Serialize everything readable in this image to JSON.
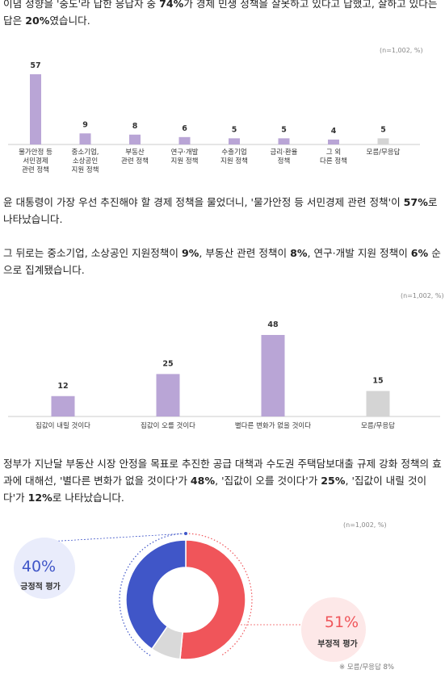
{
  "paragraphs": [
    {
      "parts": [
        {
          "t": "이념 성향을 '중도'라 답한 응답자 중 "
        },
        {
          "t": "74%",
          "b": true
        },
        {
          "t": "가 경제 민생 정책을 잘못하고 있다고 답했고, 잘하고 있다는 답은 "
        },
        {
          "t": "20%",
          "b": true
        },
        {
          "t": "였습니다."
        }
      ]
    },
    {
      "parts": [
        {
          "t": "윤 대통령이 가장 우선 추진해야 할 경제 정책을 물었더니, '물가안정 등 서민경제 관련 정책'이 "
        },
        {
          "t": "57%",
          "b": true
        },
        {
          "t": "로 나타났습니다."
        }
      ]
    },
    {
      "parts": [
        {
          "t": "그 뒤로는 중소기업, 소상공인 지원정책이 "
        },
        {
          "t": "9%",
          "b": true
        },
        {
          "t": ", 부동산 관련 정책이 "
        },
        {
          "t": "8%",
          "b": true
        },
        {
          "t": ", 연구·개발 지원 정책이 "
        },
        {
          "t": "6%",
          "b": true
        },
        {
          "t": " 순으로 집계됐습니다."
        }
      ]
    },
    {
      "parts": [
        {
          "t": "정부가 지난달 부동산 시장 안정을 목표로 추진한 공급 대책과 수도권 주택담보대출 규제 강화 정책의 효과에 대해선, '별다른 변화가 없을 것이다'가 "
        },
        {
          "t": "48%",
          "b": true
        },
        {
          "t": ", '집값이 오를 것이다'가 "
        },
        {
          "t": "25%",
          "b": true
        },
        {
          "t": ", '집값이 내릴 것이다'가 "
        },
        {
          "t": "12%",
          "b": true
        },
        {
          "t": "로 나타났습니다."
        }
      ]
    }
  ],
  "chart_data": [
    {
      "type": "bar",
      "note": "(n=1,002, %)",
      "categories": [
        [
          "물가안정 등",
          "서민경제",
          "관련 정책"
        ],
        [
          "중소기업,",
          "소상공인",
          "지원 정책"
        ],
        [
          "부동산",
          "관련 정책"
        ],
        [
          "연구·개발",
          "지원 정책"
        ],
        [
          "수출기업",
          "지원 정책"
        ],
        [
          "금리·환율",
          "정책"
        ],
        [
          "그 외",
          "다른 정책"
        ],
        [
          "모름/무응답"
        ]
      ],
      "values": [
        57,
        9,
        8,
        6,
        5,
        5,
        4,
        5
      ],
      "highlight_color": "#b9a5d6",
      "other_color": "#d4d4d4",
      "grey_index": 7,
      "ylim": [
        0,
        57
      ]
    },
    {
      "type": "bar",
      "note": "(n=1,002, %)",
      "categories": [
        [
          "집값이 내릴 것이다"
        ],
        [
          "집값이 오를 것이다"
        ],
        [
          "별다른 변화가 없을 것이다"
        ],
        [
          "모름/무응답"
        ]
      ],
      "values": [
        12,
        25,
        48,
        15
      ],
      "highlight_color": "#b9a5d6",
      "other_color": "#d4d4d4",
      "grey_index": 3,
      "ylim": [
        0,
        48
      ]
    },
    {
      "type": "pie",
      "note": "(n=1,002, %)",
      "slices": [
        {
          "label": "부정적 평가",
          "pct_label": "51%",
          "value": 51,
          "color": "#f0555a"
        },
        {
          "label": "모름/무응답",
          "value": 8,
          "color": "#d9d9d9"
        },
        {
          "label": "긍정적 평가",
          "pct_label": "40%",
          "value": 40,
          "color": "#4056c8"
        }
      ],
      "footnote": "※ 모름/무응답 8%"
    }
  ]
}
